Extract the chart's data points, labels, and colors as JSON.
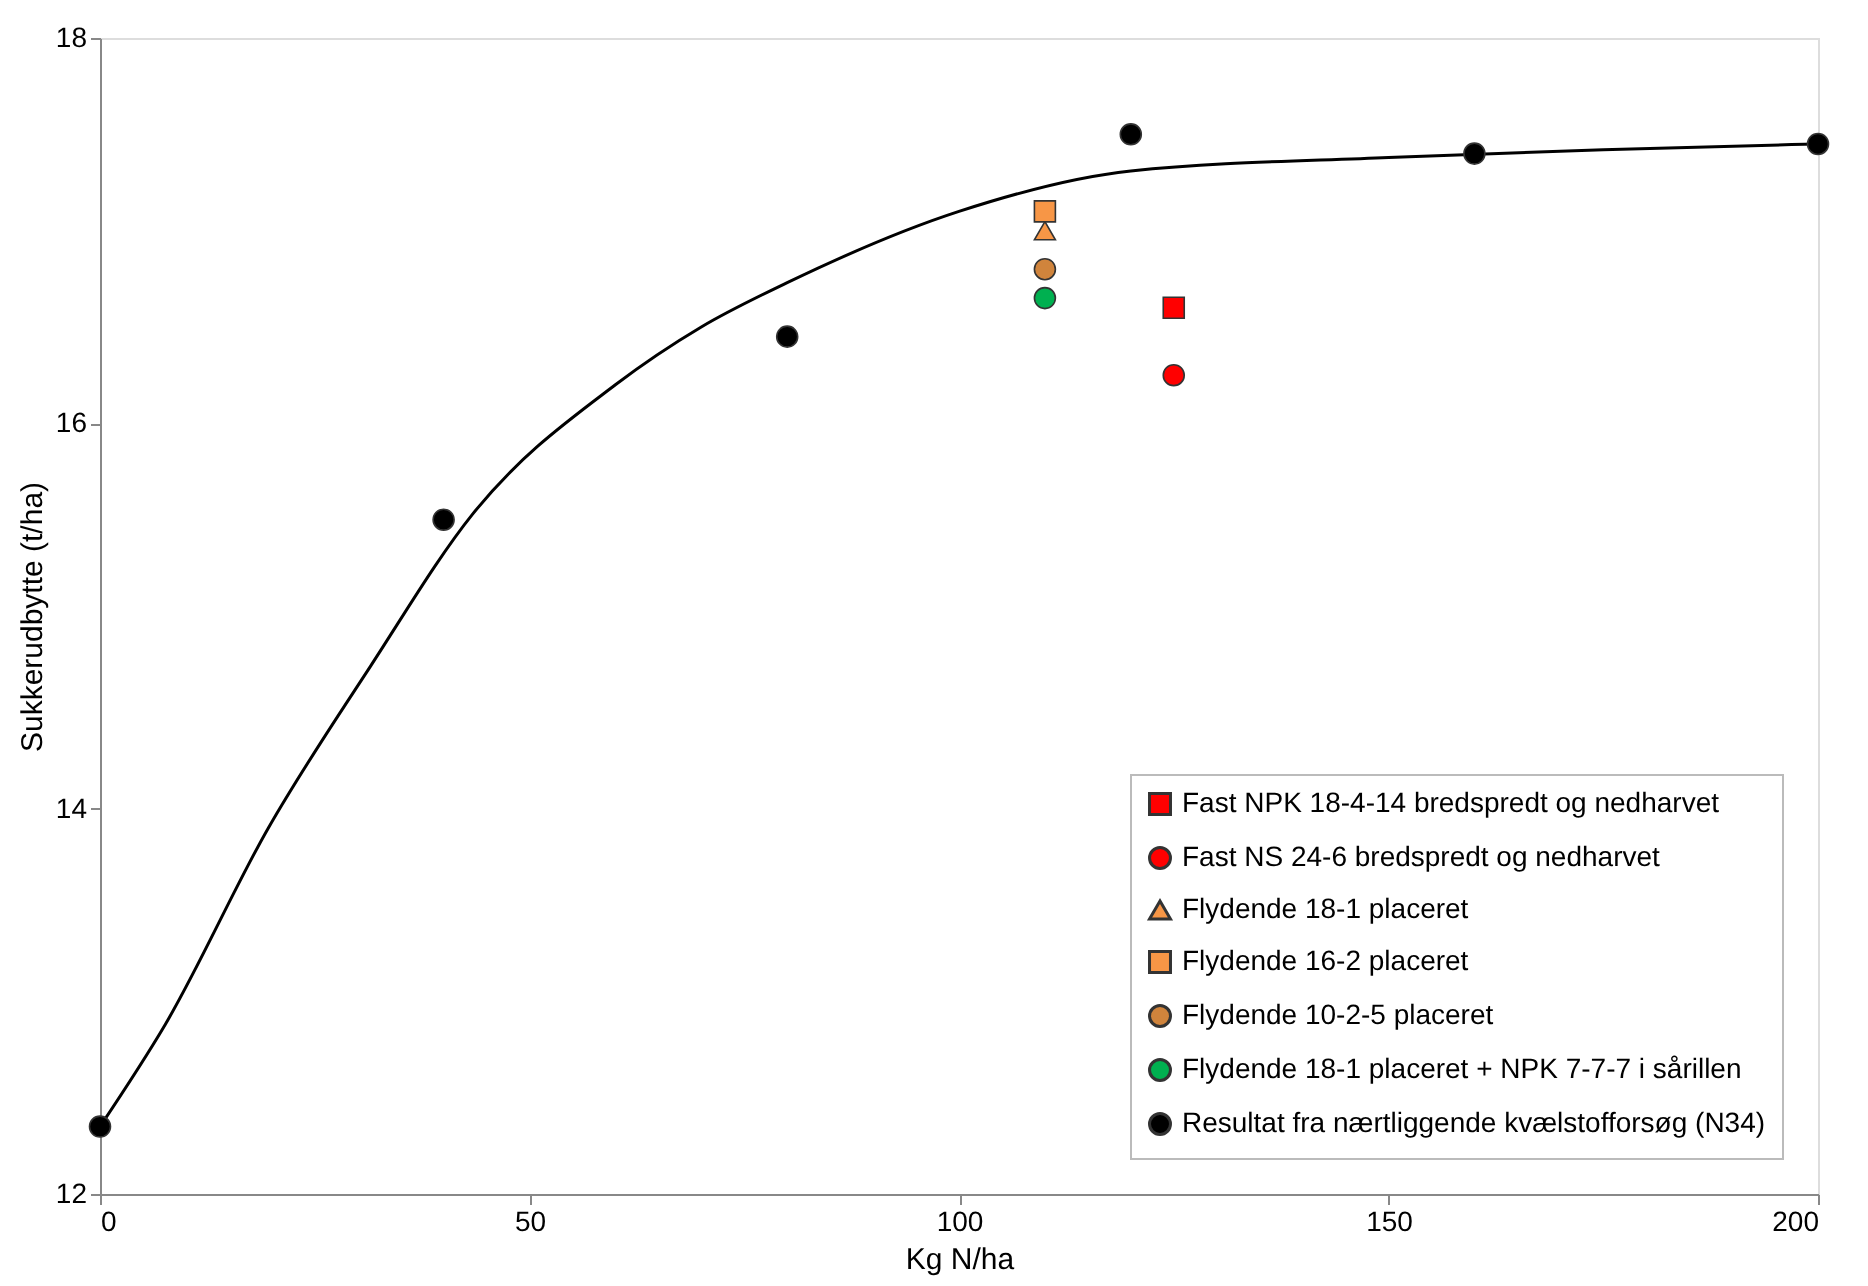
{
  "chart_data": {
    "type": "scatter",
    "xlabel": "Kg N/ha",
    "ylabel": "Sukkerudbytte (t/ha)",
    "xlim": [
      0,
      200
    ],
    "xticks": [
      0,
      50,
      100,
      150,
      200
    ],
    "ylim": [
      12,
      18
    ],
    "yticks": [
      12,
      14,
      16,
      18
    ],
    "grid": false,
    "legend": "bottom right",
    "series": [
      {
        "name": "Fast NPK 18-4-14 bredspredt og nedharvet",
        "color": "#ff0000",
        "marker": "square",
        "x": [
          125
        ],
        "values": [
          16.6
        ]
      },
      {
        "name": "Fast NS 24-6 bredspredt og nedharvet",
        "color": "#ff0000",
        "marker": "circle",
        "x": [
          125
        ],
        "values": [
          16.25
        ]
      },
      {
        "name": "Flydende 18-1  placeret",
        "color": "#f79646",
        "marker": "triangle",
        "x": [
          110
        ],
        "values": [
          17.0
        ]
      },
      {
        "name": "Flydende 16-2  placeret",
        "color": "#f79646",
        "marker": "square",
        "x": [
          110
        ],
        "values": [
          17.1
        ]
      },
      {
        "name": "Flydende 10-2-5  placeret",
        "color": "#d0843c",
        "marker": "circle",
        "x": [
          110
        ],
        "values": [
          16.8
        ]
      },
      {
        "name": "Flydende 18-1  placeret + NPK 7-7-7 i sårillen",
        "color": "#00b050",
        "marker": "circle",
        "x": [
          110
        ],
        "values": [
          16.65
        ]
      },
      {
        "name": "Resultat fra nærtliggende kvælstofforsøg (N34)",
        "color": "#000000",
        "marker": "circle",
        "x": [
          0,
          40,
          80,
          120,
          160,
          200
        ],
        "values": [
          12.35,
          15.5,
          16.45,
          17.5,
          17.4,
          17.45
        ]
      },
      {
        "type": "line",
        "color": "#000000",
        "marker": "none",
        "line_style": "solid",
        "x": [
          0,
          7.6,
          19.6,
          31.5,
          43.4,
          60,
          70,
          80,
          100,
          120,
          150,
          175,
          200
        ],
        "values": [
          12.35,
          12.88,
          13.9,
          14.74,
          15.53,
          16.2,
          16.5,
          16.73,
          17.1,
          17.31,
          17.38,
          17.42,
          17.45
        ]
      }
    ]
  }
}
